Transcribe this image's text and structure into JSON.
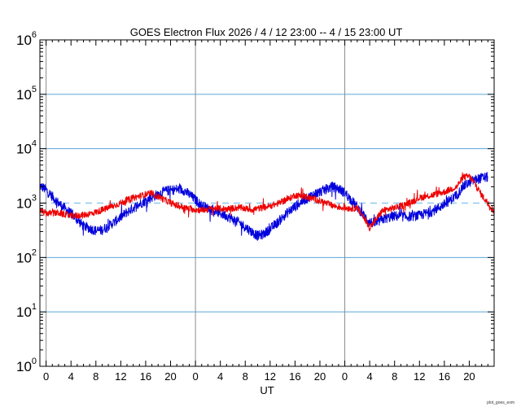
{
  "chart_data": {
    "type": "line",
    "title": "GOES Electron Flux   2026 /  4 / 12   23:00 --  4 / 15   23:00   UT",
    "xlabel": "UT",
    "ylabel": "",
    "y_scale": "log",
    "ylim": [
      1,
      1000000
    ],
    "xlim_hours": [
      -1,
      72
    ],
    "y_tick_labels": [
      {
        "base": "10",
        "exp": "0",
        "value": 1
      },
      {
        "base": "10",
        "exp": "1",
        "value": 10
      },
      {
        "base": "10",
        "exp": "2",
        "value": 100
      },
      {
        "base": "10",
        "exp": "3",
        "value": 1000
      },
      {
        "base": "10",
        "exp": "4",
        "value": 10000
      },
      {
        "base": "10",
        "exp": "5",
        "value": 100000
      },
      {
        "base": "10",
        "exp": "6",
        "value": 1000000
      }
    ],
    "x_ticks": [
      {
        "hour": 0,
        "label": "0"
      },
      {
        "hour": 4,
        "label": "4"
      },
      {
        "hour": 8,
        "label": "8"
      },
      {
        "hour": 12,
        "label": "12"
      },
      {
        "hour": 16,
        "label": "16"
      },
      {
        "hour": 20,
        "label": "20"
      },
      {
        "hour": 24,
        "label": "0"
      },
      {
        "hour": 28,
        "label": "4"
      },
      {
        "hour": 32,
        "label": "8"
      },
      {
        "hour": 36,
        "label": "12"
      },
      {
        "hour": 40,
        "label": "16"
      },
      {
        "hour": 44,
        "label": "20"
      },
      {
        "hour": 48,
        "label": "0"
      },
      {
        "hour": 52,
        "label": "4"
      },
      {
        "hour": 56,
        "label": "8"
      },
      {
        "hour": 60,
        "label": "12"
      },
      {
        "hour": 64,
        "label": "16"
      },
      {
        "hour": 68,
        "label": "20"
      }
    ],
    "day_boundaries_hours": [
      0,
      24,
      48
    ],
    "horizontal_gridlines": [
      10,
      100,
      10000,
      100000
    ],
    "threshold": {
      "value": 1000,
      "style": "dashed"
    },
    "series": [
      {
        "name": "blue",
        "color": "#0000dd",
        "noise": 0.09,
        "points": [
          [
            -1,
            2100
          ],
          [
            0,
            1750
          ],
          [
            2,
            1000
          ],
          [
            4,
            640
          ],
          [
            6,
            380
          ],
          [
            8,
            310
          ],
          [
            9,
            320
          ],
          [
            11,
            450
          ],
          [
            13,
            680
          ],
          [
            15,
            960
          ],
          [
            17,
            1280
          ],
          [
            19,
            1650
          ],
          [
            21,
            1800
          ],
          [
            22,
            1750
          ],
          [
            23,
            1450
          ],
          [
            24,
            1150
          ],
          [
            25,
            900
          ],
          [
            27,
            720
          ],
          [
            29,
            580
          ],
          [
            31,
            440
          ],
          [
            33,
            300
          ],
          [
            34,
            250
          ],
          [
            35,
            270
          ],
          [
            37,
            420
          ],
          [
            39,
            700
          ],
          [
            41,
            1050
          ],
          [
            43,
            1450
          ],
          [
            45,
            1800
          ],
          [
            46,
            2000
          ],
          [
            47,
            1850
          ],
          [
            48,
            1550
          ],
          [
            49,
            1150
          ],
          [
            50,
            850
          ],
          [
            51,
            600
          ],
          [
            52,
            450
          ],
          [
            53,
            420
          ],
          [
            54,
            500
          ],
          [
            56,
            580
          ],
          [
            58,
            560
          ],
          [
            60,
            590
          ],
          [
            62,
            700
          ],
          [
            64,
            950
          ],
          [
            66,
            1400
          ],
          [
            67,
            2000
          ],
          [
            68,
            2400
          ],
          [
            69,
            2700
          ],
          [
            70,
            2900
          ],
          [
            71,
            3000
          ]
        ]
      },
      {
        "name": "red",
        "color": "#ee0000",
        "noise": 0.06,
        "points": [
          [
            -1,
            720
          ],
          [
            0,
            650
          ],
          [
            2,
            660
          ],
          [
            4,
            580
          ],
          [
            6,
            600
          ],
          [
            8,
            680
          ],
          [
            10,
            820
          ],
          [
            12,
            1000
          ],
          [
            14,
            1250
          ],
          [
            16,
            1450
          ],
          [
            17,
            1500
          ],
          [
            19,
            1150
          ],
          [
            21,
            900
          ],
          [
            23,
            780
          ],
          [
            25,
            740
          ],
          [
            27,
            800
          ],
          [
            29,
            780
          ],
          [
            31,
            830
          ],
          [
            33,
            760
          ],
          [
            35,
            830
          ],
          [
            37,
            960
          ],
          [
            39,
            1200
          ],
          [
            40,
            1400
          ],
          [
            42,
            1300
          ],
          [
            44,
            1100
          ],
          [
            46,
            900
          ],
          [
            48,
            810
          ],
          [
            50,
            800
          ],
          [
            51,
            560
          ],
          [
            52,
            350
          ],
          [
            53,
            500
          ],
          [
            54,
            720
          ],
          [
            56,
            820
          ],
          [
            58,
            960
          ],
          [
            60,
            1250
          ],
          [
            62,
            1400
          ],
          [
            64,
            1600
          ],
          [
            66,
            2000
          ],
          [
            67,
            3000
          ],
          [
            68,
            3100
          ],
          [
            69,
            2200
          ],
          [
            70,
            1400
          ],
          [
            71,
            1000
          ],
          [
            72,
            700
          ]
        ]
      }
    ]
  },
  "credit_text": "plot_goes_exm"
}
